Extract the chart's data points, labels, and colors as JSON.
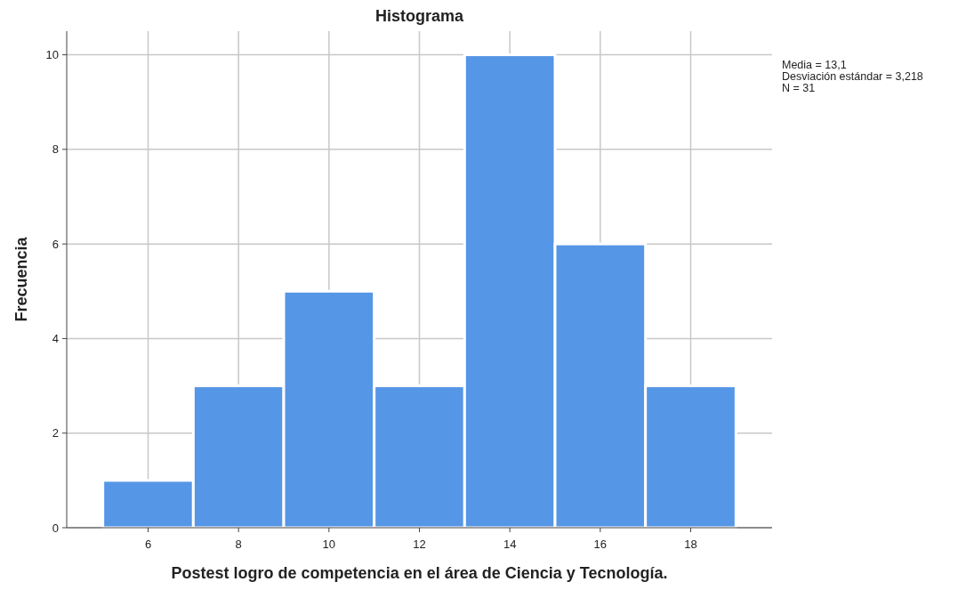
{
  "chart_data": {
    "type": "histogram",
    "title": "Histograma",
    "xlabel": "Postest logro de competencia en el área de Ciencia y Tecnología.",
    "ylabel": "Frecuencia",
    "bins": [
      5,
      7,
      9,
      11,
      13,
      15,
      17,
      19
    ],
    "values": [
      1,
      3,
      5,
      3,
      10,
      6,
      3
    ],
    "color": "#5596e6",
    "xlim": [
      4.2,
      19.8
    ],
    "xticks": [
      6,
      8,
      10,
      12,
      14,
      16,
      18
    ],
    "ylim": [
      0,
      10.5
    ],
    "yticks": [
      0,
      2,
      4,
      6,
      8,
      10
    ],
    "grid": true,
    "annotations": [
      "Media = 13,1",
      "Desviación estándar = 3,218",
      "N = 31"
    ]
  }
}
